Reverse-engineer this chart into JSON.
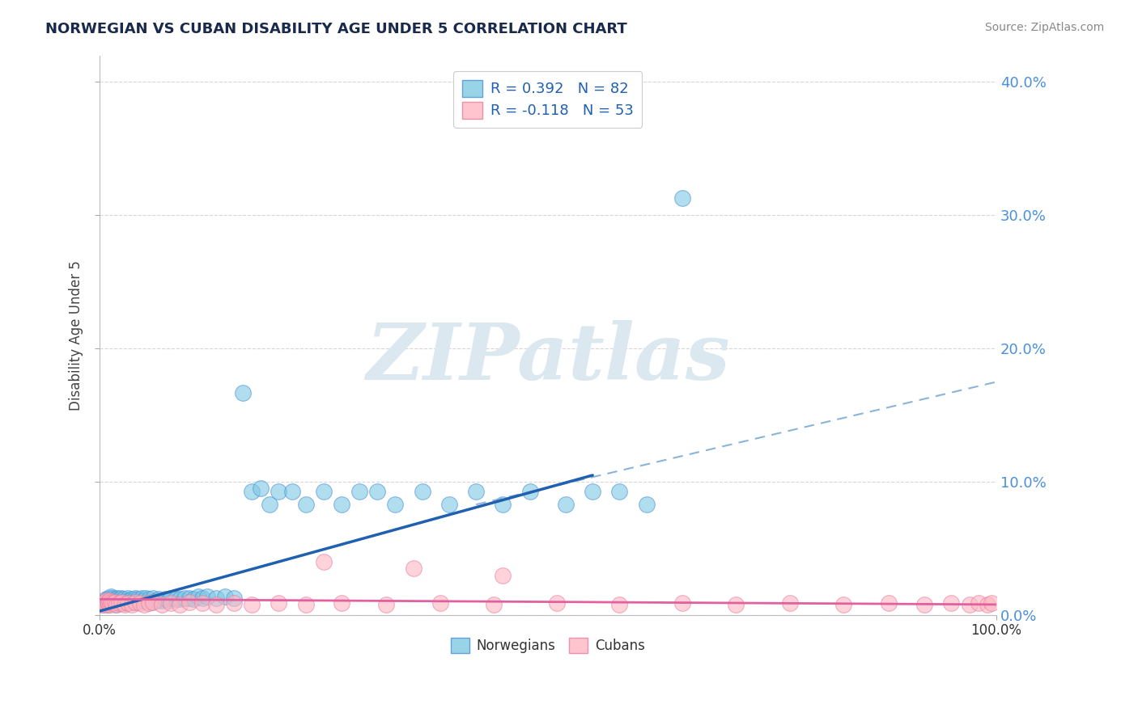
{
  "title": "NORWEGIAN VS CUBAN DISABILITY AGE UNDER 5 CORRELATION CHART",
  "source": "Source: ZipAtlas.com",
  "ylabel": "Disability Age Under 5",
  "legend_norwegian": "R = 0.392   N = 82",
  "legend_cuban": "R = -0.118   N = 53",
  "norwegian_color": "#7ec8e3",
  "cuban_color": "#ffb6c1",
  "norwegian_edge_color": "#4a90d9",
  "cuban_edge_color": "#e87da0",
  "norwegian_line_color": "#2060b0",
  "cuban_line_color": "#e060a0",
  "dashed_line_color": "#8ab4d8",
  "watermark_text": "ZIPatlas",
  "watermark_color": "#dce8f0",
  "xlim": [
    0.0,
    1.0
  ],
  "ylim": [
    0.0,
    0.42
  ],
  "ytick_vals": [
    0.0,
    0.1,
    0.2,
    0.3,
    0.4
  ],
  "ytick_labels_right": [
    "0.0%",
    "10.0%",
    "20.0%",
    "30.0%",
    "40.0%"
  ],
  "background_color": "#ffffff",
  "grid_color": "#cccccc",
  "nor_line_x0": 0.0,
  "nor_line_y0": 0.003,
  "nor_line_x1": 0.55,
  "nor_line_y1": 0.105,
  "dash_line_x0": 0.42,
  "dash_line_y0": 0.083,
  "dash_line_x1": 1.0,
  "dash_line_y1": 0.175,
  "cub_line_x0": 0.0,
  "cub_line_y0": 0.012,
  "cub_line_x1": 1.0,
  "cub_line_y1": 0.008,
  "nor_x": [
    0.005,
    0.006,
    0.007,
    0.008,
    0.009,
    0.01,
    0.01,
    0.011,
    0.012,
    0.013,
    0.014,
    0.015,
    0.015,
    0.016,
    0.017,
    0.018,
    0.019,
    0.02,
    0.021,
    0.022,
    0.023,
    0.024,
    0.025,
    0.026,
    0.027,
    0.028,
    0.03,
    0.031,
    0.032,
    0.033,
    0.035,
    0.036,
    0.038,
    0.04,
    0.041,
    0.043,
    0.045,
    0.047,
    0.05,
    0.052,
    0.055,
    0.058,
    0.06,
    0.063,
    0.066,
    0.07,
    0.073,
    0.077,
    0.08,
    0.085,
    0.09,
    0.095,
    0.1,
    0.105,
    0.11,
    0.115,
    0.12,
    0.13,
    0.14,
    0.15,
    0.16,
    0.17,
    0.18,
    0.19,
    0.2,
    0.215,
    0.23,
    0.25,
    0.27,
    0.29,
    0.31,
    0.33,
    0.36,
    0.39,
    0.42,
    0.45,
    0.48,
    0.52,
    0.55,
    0.58,
    0.61,
    0.65
  ],
  "nor_y": [
    0.008,
    0.01,
    0.012,
    0.009,
    0.011,
    0.013,
    0.008,
    0.012,
    0.01,
    0.014,
    0.009,
    0.011,
    0.013,
    0.01,
    0.012,
    0.008,
    0.011,
    0.013,
    0.01,
    0.012,
    0.009,
    0.011,
    0.013,
    0.01,
    0.012,
    0.009,
    0.011,
    0.01,
    0.013,
    0.011,
    0.01,
    0.012,
    0.011,
    0.013,
    0.01,
    0.012,
    0.011,
    0.013,
    0.011,
    0.013,
    0.012,
    0.01,
    0.013,
    0.011,
    0.012,
    0.011,
    0.012,
    0.011,
    0.013,
    0.012,
    0.012,
    0.013,
    0.013,
    0.012,
    0.014,
    0.013,
    0.014,
    0.013,
    0.014,
    0.013,
    0.167,
    0.093,
    0.095,
    0.083,
    0.093,
    0.093,
    0.083,
    0.093,
    0.083,
    0.093,
    0.093,
    0.083,
    0.093,
    0.083,
    0.093,
    0.083,
    0.093,
    0.083,
    0.093,
    0.093,
    0.083,
    0.313
  ],
  "cub_x": [
    0.003,
    0.005,
    0.006,
    0.007,
    0.008,
    0.009,
    0.01,
    0.011,
    0.012,
    0.013,
    0.015,
    0.017,
    0.019,
    0.022,
    0.025,
    0.028,
    0.032,
    0.036,
    0.04,
    0.045,
    0.05,
    0.055,
    0.06,
    0.07,
    0.08,
    0.09,
    0.1,
    0.115,
    0.13,
    0.15,
    0.17,
    0.2,
    0.23,
    0.27,
    0.32,
    0.38,
    0.44,
    0.51,
    0.58,
    0.65,
    0.71,
    0.77,
    0.83,
    0.88,
    0.92,
    0.95,
    0.97,
    0.98,
    0.99,
    0.995,
    0.25,
    0.35,
    0.45
  ],
  "cub_y": [
    0.008,
    0.01,
    0.009,
    0.011,
    0.008,
    0.01,
    0.009,
    0.011,
    0.008,
    0.01,
    0.009,
    0.01,
    0.008,
    0.009,
    0.01,
    0.008,
    0.009,
    0.008,
    0.01,
    0.009,
    0.008,
    0.009,
    0.01,
    0.008,
    0.009,
    0.008,
    0.01,
    0.009,
    0.008,
    0.009,
    0.008,
    0.009,
    0.008,
    0.009,
    0.008,
    0.009,
    0.008,
    0.009,
    0.008,
    0.009,
    0.008,
    0.009,
    0.008,
    0.009,
    0.008,
    0.009,
    0.008,
    0.009,
    0.008,
    0.009,
    0.04,
    0.035,
    0.03
  ]
}
